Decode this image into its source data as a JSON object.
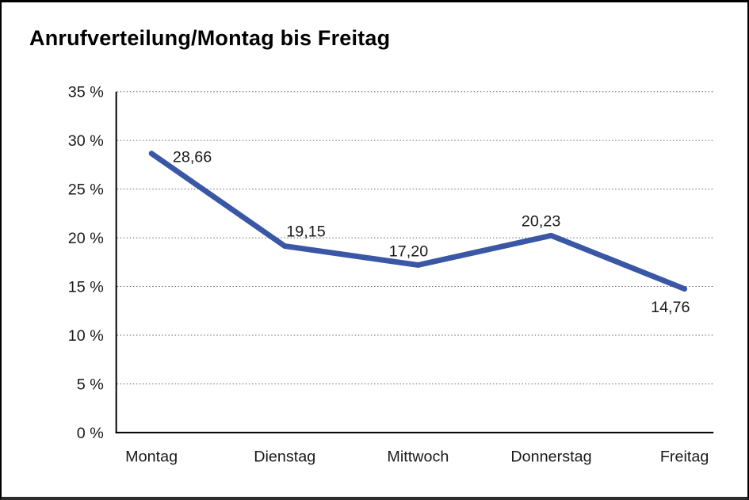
{
  "page": {
    "background": "#ffffff",
    "frame_border_color": "#000000"
  },
  "chart_data": {
    "type": "line",
    "title": "Anrufverteilung/Montag bis Freitag",
    "categories": [
      "Montag",
      "Dienstag",
      "Mittwoch",
      "Donnerstag",
      "Freitag"
    ],
    "series": [
      {
        "name": "Anrufverteilung",
        "values": [
          28.66,
          19.15,
          17.2,
          20.23,
          14.76
        ],
        "data_labels": [
          "28,66",
          "19,15",
          "17,20",
          "20,23",
          "14,76"
        ]
      }
    ],
    "xlabel": "",
    "ylabel": "",
    "ylim": [
      0,
      35
    ],
    "y_step": 5,
    "y_tick_labels": [
      "0 %",
      "5 %",
      "10 %",
      "15 %",
      "20 %",
      "25 %",
      "30 %",
      "35 %"
    ],
    "grid": "horizontal-dotted",
    "legend_position": "none",
    "colors": {
      "line": "#3A57A6",
      "gridline": "#666666",
      "axis": "#000000",
      "text": "#1a1a1a"
    }
  }
}
